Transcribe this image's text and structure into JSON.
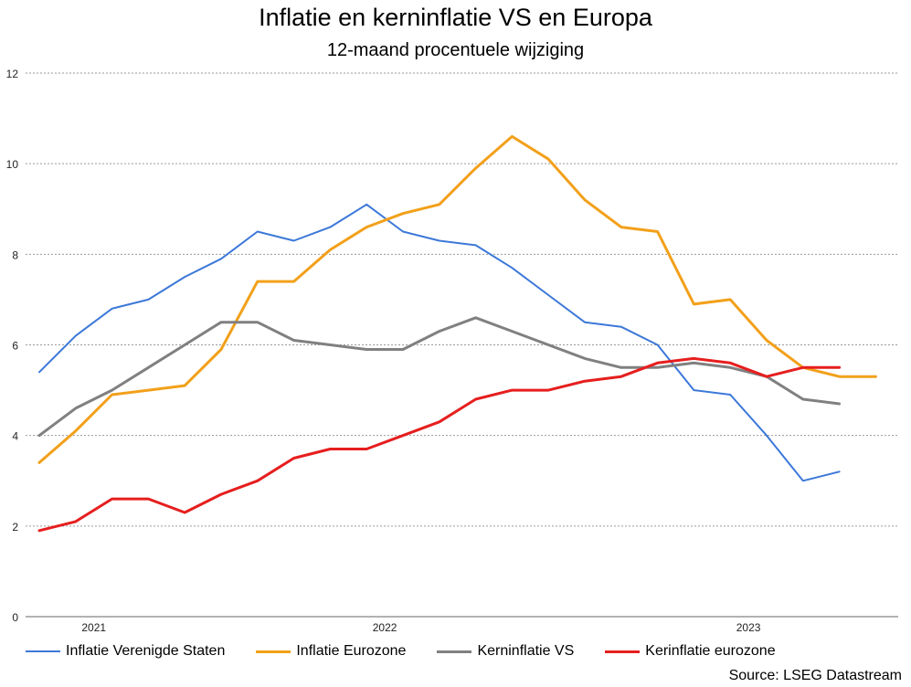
{
  "title": "Inflatie en kerninflatie VS en Europa",
  "subtitle": "12-maand procentuele wijziging",
  "source": "Source: LSEG Datastream",
  "chart_data": {
    "type": "line",
    "title": "Inflatie en kerninflatie VS en Europa",
    "subtitle": "12-maand procentuele wijziging",
    "ylim": [
      0,
      12
    ],
    "yticks": [
      0,
      2,
      4,
      6,
      8,
      10,
      12
    ],
    "xlabels": [
      {
        "label": "2021",
        "x": 1.5
      },
      {
        "label": "2022",
        "x": 9.5
      },
      {
        "label": "2023",
        "x": 19.5
      }
    ],
    "grid": true,
    "legend_position": "bottom",
    "series": [
      {
        "name": "Inflatie Verenigde Staten",
        "color": "#3c78d8",
        "stroke": 2,
        "values": [
          5.4,
          6.2,
          6.8,
          7.0,
          7.5,
          7.9,
          8.5,
          8.3,
          8.6,
          9.1,
          8.5,
          8.3,
          8.2,
          7.7,
          7.1,
          6.5,
          6.4,
          6.0,
          5.0,
          4.9,
          4.0,
          3.0,
          3.2
        ]
      },
      {
        "name": "Inflatie Eurozone",
        "color": "#f2a01a",
        "stroke": 3,
        "values": [
          3.4,
          4.1,
          4.9,
          5.0,
          5.1,
          5.9,
          7.4,
          7.4,
          8.1,
          8.6,
          8.9,
          9.1,
          9.9,
          10.6,
          10.1,
          9.2,
          8.6,
          8.5,
          6.9,
          7.0,
          6.1,
          5.5,
          5.3,
          5.3
        ]
      },
      {
        "name": "Kerninflatie VS",
        "color": "#808080",
        "stroke": 3,
        "values": [
          4.0,
          4.6,
          5.0,
          5.5,
          6.0,
          6.5,
          6.5,
          6.1,
          6.0,
          5.9,
          5.9,
          6.3,
          6.6,
          6.3,
          6.0,
          5.7,
          5.5,
          5.5,
          5.6,
          5.5,
          5.3,
          4.8,
          4.7
        ]
      },
      {
        "name": "Kerinflatie eurozone",
        "color": "#e61e1e",
        "stroke": 3,
        "values": [
          1.9,
          2.1,
          2.6,
          2.6,
          2.3,
          2.7,
          3.0,
          3.5,
          3.7,
          3.7,
          4.0,
          4.3,
          4.8,
          5.0,
          5.0,
          5.2,
          5.3,
          5.6,
          5.7,
          5.6,
          5.3,
          5.5,
          5.5
        ]
      }
    ]
  }
}
